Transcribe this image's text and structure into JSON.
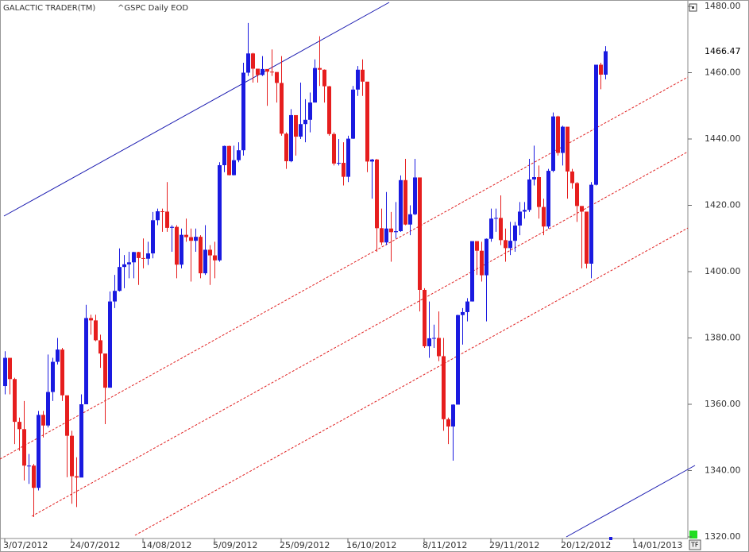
{
  "chart_data": {
    "type": "candlestick",
    "title": "GALACTIC TRADER(TM)",
    "subtitle": "^GSPC Daily EOD",
    "last_price_label": "1466.47",
    "up_color": "#1a1ae0",
    "down_color": "#e61e1e",
    "ylim": [
      1320,
      1480
    ],
    "yticks": [
      {
        "value": 1320,
        "label": "1320.00"
      },
      {
        "value": 1340,
        "label": "1340.00"
      },
      {
        "value": 1360,
        "label": "1360.00"
      },
      {
        "value": 1380,
        "label": "1380.00"
      },
      {
        "value": 1400,
        "label": "1400.00"
      },
      {
        "value": 1420,
        "label": "1420.00"
      },
      {
        "value": 1440,
        "label": "1440.00"
      },
      {
        "value": 1460,
        "label": "1460.00"
      },
      {
        "value": 1480,
        "label": "1480.00"
      }
    ],
    "categories": [
      "3/07/2012",
      null,
      null,
      null,
      null,
      null,
      null,
      null,
      null,
      null,
      null,
      null,
      null,
      null,
      "24/07/2012",
      null,
      null,
      null,
      null,
      null,
      null,
      null,
      null,
      null,
      null,
      null,
      null,
      null,
      null,
      "14/08/2012",
      null,
      null,
      null,
      null,
      null,
      null,
      null,
      null,
      null,
      null,
      null,
      null,
      null,
      null,
      "5/09/2012",
      null,
      null,
      null,
      null,
      null,
      null,
      null,
      null,
      null,
      null,
      null,
      null,
      null,
      "25/09/2012",
      null,
      null,
      null,
      null,
      null,
      null,
      null,
      null,
      null,
      null,
      null,
      null,
      null,
      "16/10/2012",
      null,
      null,
      null,
      null,
      null,
      null,
      null,
      null,
      null,
      null,
      null,
      null,
      null,
      null,
      null,
      "8/11/2012",
      null,
      null,
      null,
      null,
      null,
      null,
      null,
      null,
      null,
      null,
      null,
      null,
      null,
      "29/11/2012",
      null,
      null,
      null,
      null,
      null,
      null,
      null,
      null,
      null,
      null,
      null,
      null,
      null,
      null,
      "20/12/2012",
      null,
      null,
      null,
      null,
      null,
      null,
      null,
      null,
      null,
      null,
      null,
      null,
      null,
      null,
      "14/01/2013"
    ],
    "open": [
      1365.5,
      1374.0,
      1367.6,
      1354.7,
      1352.5,
      1341.5,
      1341.5,
      1334.8,
      1356.8,
      1353.6,
      1363.7,
      1372.8,
      1376.5,
      1362.7,
      1350.5,
      1338.3,
      1337.9,
      1360.0,
      1386.0,
      1385.3,
      1379.3,
      1375.3,
      1365.0,
      1391.0,
      1394.2,
      1401.4,
      1402.2,
      1402.8,
      1405.9,
      1404.1,
      1403.9,
      1405.5,
      1415.5,
      1418.2,
      1418.1,
      1413.2,
      1413.5,
      1402.1,
      1411.1,
      1410.4,
      1409.3,
      1410.5,
      1399.5,
      1406.6,
      1404.9,
      1403.4,
      1432.1,
      1437.9,
      1429.1,
      1433.6,
      1436.6,
      1460.0,
      1465.8,
      1461.2,
      1459.3,
      1461.1,
      1460.3,
      1460.2,
      1456.9,
      1441.6,
      1433.3,
      1447.2,
      1440.7,
      1444.5,
      1445.8,
      1451.0,
      1461.4,
      1460.9,
      1455.9,
      1441.5,
      1432.6,
      1432.8,
      1428.6,
      1440.1,
      1454.9,
      1460.9,
      1457.3,
      1433.2,
      1433.8,
      1413.1,
      1408.8,
      1413.0,
      1411.9,
      1412.2,
      1427.6,
      1414.2,
      1417.3,
      1428.4,
      1394.5,
      1377.5,
      1379.9,
      1380.0,
      1374.5,
      1355.5,
      1353.3,
      1359.9,
      1386.9,
      1387.8,
      1391.0,
      1409.2,
      1406.3,
      1398.9,
      1409.9,
      1416.0,
      1416.2,
      1409.5,
      1407.1,
      1409.3,
      1413.9,
      1418.1,
      1418.6,
      1427.8,
      1428.5,
      1419.5,
      1413.6,
      1430.4,
      1446.8,
      1435.8,
      1443.7,
      1430.2,
      1426.7,
      1419.8,
      1418.1,
      1402.4,
      1426.2,
      1462.4,
      1459.4,
      null,
      null,
      null,
      null,
      null,
      null
    ],
    "high": [
      1376,
      1374,
      1368,
      1356,
      1361,
      1345,
      1342,
      1358,
      1358,
      1375,
      1374,
      1380,
      1377,
      1362,
      1352,
      1344,
      1363,
      1390,
      1387,
      1387,
      1381,
      1375,
      1394,
      1399,
      1407,
      1405,
      1406,
      1406,
      1406,
      1410,
      1409,
      1418,
      1419,
      1419,
      1427,
      1414,
      1414,
      1413,
      1416,
      1413,
      1413,
      1411,
      1414,
      1408,
      1409,
      1433,
      1438,
      1438,
      1438,
      1439,
      1463,
      1475,
      1466,
      1461,
      1465,
      1461,
      1467,
      1460,
      1465,
      1442,
      1449,
      1447,
      1457,
      1452,
      1454,
      1464,
      1471,
      1461,
      1456,
      1442,
      1440,
      1439,
      1441,
      1456,
      1462,
      1464,
      1457,
      1434,
      1434,
      1419,
      1424,
      1418,
      1421,
      1429,
      1434,
      1420,
      1434,
      1428,
      1395,
      1391,
      1384,
      1388,
      1380,
      1356,
      1360,
      1387,
      1389,
      1392,
      1409,
      1409,
      1409,
      1410,
      1419,
      1419,
      1423,
      1413,
      1415,
      1415,
      1421,
      1421,
      1434,
      1438,
      1432,
      1422,
      1431,
      1448,
      1447,
      1444,
      1443,
      1431,
      1427,
      1419,
      1418,
      1427,
      1462,
      1463,
      1468,
      null,
      null,
      null,
      null,
      null,
      null
    ],
    "low": [
      1363,
      1363,
      1348,
      1346,
      1337,
      1336,
      1326,
      1334,
      1350,
      1353,
      1361,
      1372,
      1361,
      1338,
      1330,
      1329,
      1338,
      1360,
      1381,
      1379,
      1371,
      1354,
      1365,
      1389,
      1394,
      1395,
      1398,
      1398,
      1396,
      1401,
      1402,
      1404,
      1414,
      1412,
      1412,
      1406,
      1398,
      1401,
      1409,
      1397,
      1406,
      1398,
      1399,
      1396,
      1398,
      1403,
      1430,
      1429,
      1429,
      1433,
      1435,
      1459,
      1457,
      1457,
      1459,
      1450,
      1459,
      1451,
      1441,
      1431,
      1433,
      1435,
      1440,
      1439,
      1442,
      1451,
      1456,
      1451,
      1441,
      1432,
      1432,
      1426,
      1427,
      1440,
      1453,
      1453,
      1430,
      1422,
      1406,
      1408,
      1408,
      1403,
      1410,
      1412,
      1414,
      1411,
      1417,
      1388,
      1377,
      1374,
      1377,
      1373,
      1352,
      1348,
      1343,
      1360,
      1378,
      1385,
      1391,
      1399,
      1397,
      1385,
      1409,
      1412,
      1408,
      1403,
      1405,
      1406,
      1411,
      1416,
      1418,
      1426,
      1416,
      1411,
      1413,
      1430,
      1435,
      1432,
      1422,
      1425,
      1415,
      1401,
      1401,
      1398,
      1426,
      1455,
      1458,
      null,
      null,
      null,
      null,
      null,
      null
    ],
    "close": [
      1374.0,
      1367.6,
      1354.7,
      1352.5,
      1341.5,
      1341.5,
      1334.8,
      1356.8,
      1353.6,
      1363.7,
      1372.8,
      1376.5,
      1362.7,
      1350.5,
      1338.3,
      1337.9,
      1360.0,
      1386.0,
      1385.3,
      1379.3,
      1375.3,
      1365.0,
      1391.0,
      1394.2,
      1401.4,
      1402.2,
      1402.8,
      1405.9,
      1404.1,
      1403.9,
      1405.5,
      1415.5,
      1418.2,
      1418.1,
      1413.2,
      1413.5,
      1402.1,
      1411.1,
      1410.4,
      1409.3,
      1410.5,
      1399.5,
      1406.6,
      1404.9,
      1403.4,
      1432.1,
      1437.9,
      1429.1,
      1433.6,
      1436.6,
      1460.0,
      1465.8,
      1461.2,
      1459.3,
      1461.1,
      1460.3,
      1460.2,
      1456.9,
      1441.6,
      1433.3,
      1447.2,
      1440.7,
      1444.5,
      1445.8,
      1451.0,
      1461.4,
      1460.9,
      1455.9,
      1441.5,
      1432.6,
      1432.8,
      1428.6,
      1440.1,
      1454.9,
      1460.9,
      1457.3,
      1433.2,
      1433.8,
      1413.1,
      1408.8,
      1413.0,
      1411.9,
      1412.2,
      1427.6,
      1414.2,
      1417.3,
      1428.4,
      1394.5,
      1377.5,
      1379.9,
      1380.0,
      1374.5,
      1355.5,
      1353.3,
      1359.9,
      1386.9,
      1387.8,
      1391.0,
      1409.2,
      1406.3,
      1398.9,
      1409.9,
      1416.0,
      1416.2,
      1409.5,
      1407.1,
      1409.3,
      1413.9,
      1418.1,
      1418.6,
      1427.8,
      1428.5,
      1419.5,
      1413.6,
      1430.4,
      1446.8,
      1435.8,
      1443.7,
      1430.2,
      1426.7,
      1419.8,
      1418.1,
      1402.4,
      1426.2,
      1462.4,
      1459.4,
      1466.47,
      null,
      null,
      null,
      null,
      null,
      null
    ]
  }
}
